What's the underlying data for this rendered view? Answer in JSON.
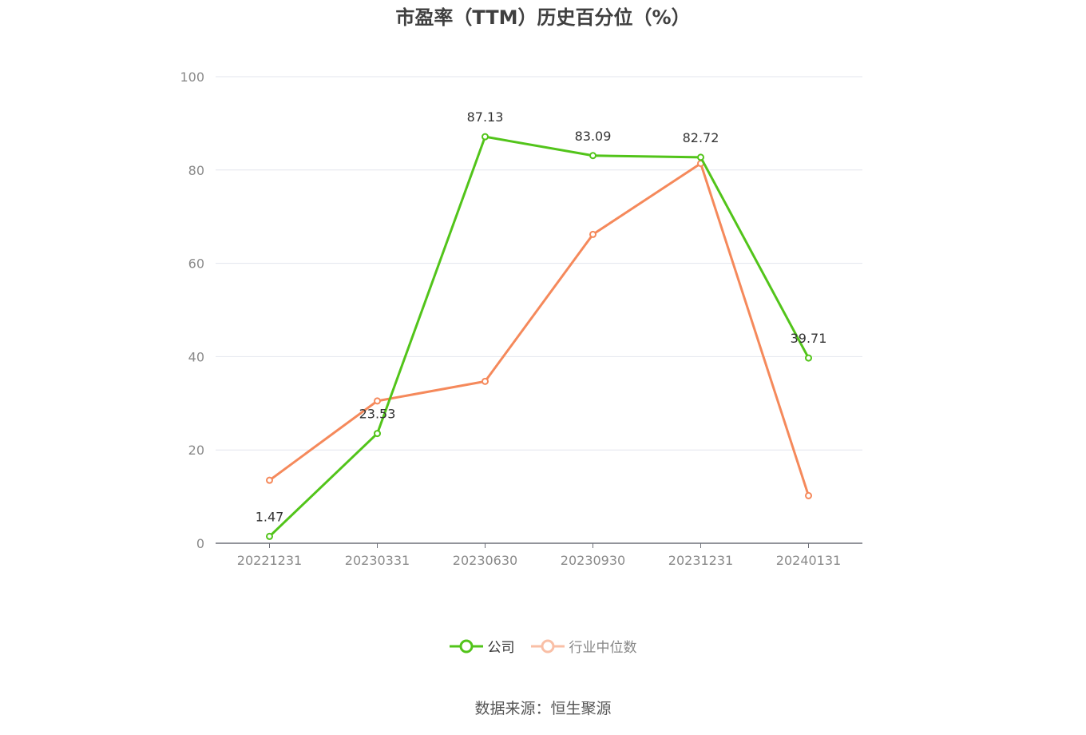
{
  "chart_data": {
    "type": "line",
    "title": "市盈率（TTM）历史百分位（%）",
    "categories": [
      "20221231",
      "20230331",
      "20230630",
      "20230930",
      "20231231",
      "20240131"
    ],
    "ylim": [
      0,
      100
    ],
    "yticks": [
      0,
      20,
      40,
      60,
      80,
      100
    ],
    "grid": true,
    "legend_position": "bottom",
    "series": [
      {
        "name": "公司",
        "color": "#52c41a",
        "values": [
          1.47,
          23.53,
          87.13,
          83.09,
          82.72,
          39.71
        ],
        "labels": [
          "1.47",
          "23.53",
          "87.13",
          "83.09",
          "82.72",
          "39.71"
        ]
      },
      {
        "name": "行业中位数",
        "color": "#f5895b",
        "values": [
          13.5,
          30.5,
          34.7,
          66.2,
          81.4,
          10.2
        ]
      }
    ]
  },
  "source": "数据来源：恒生聚源"
}
